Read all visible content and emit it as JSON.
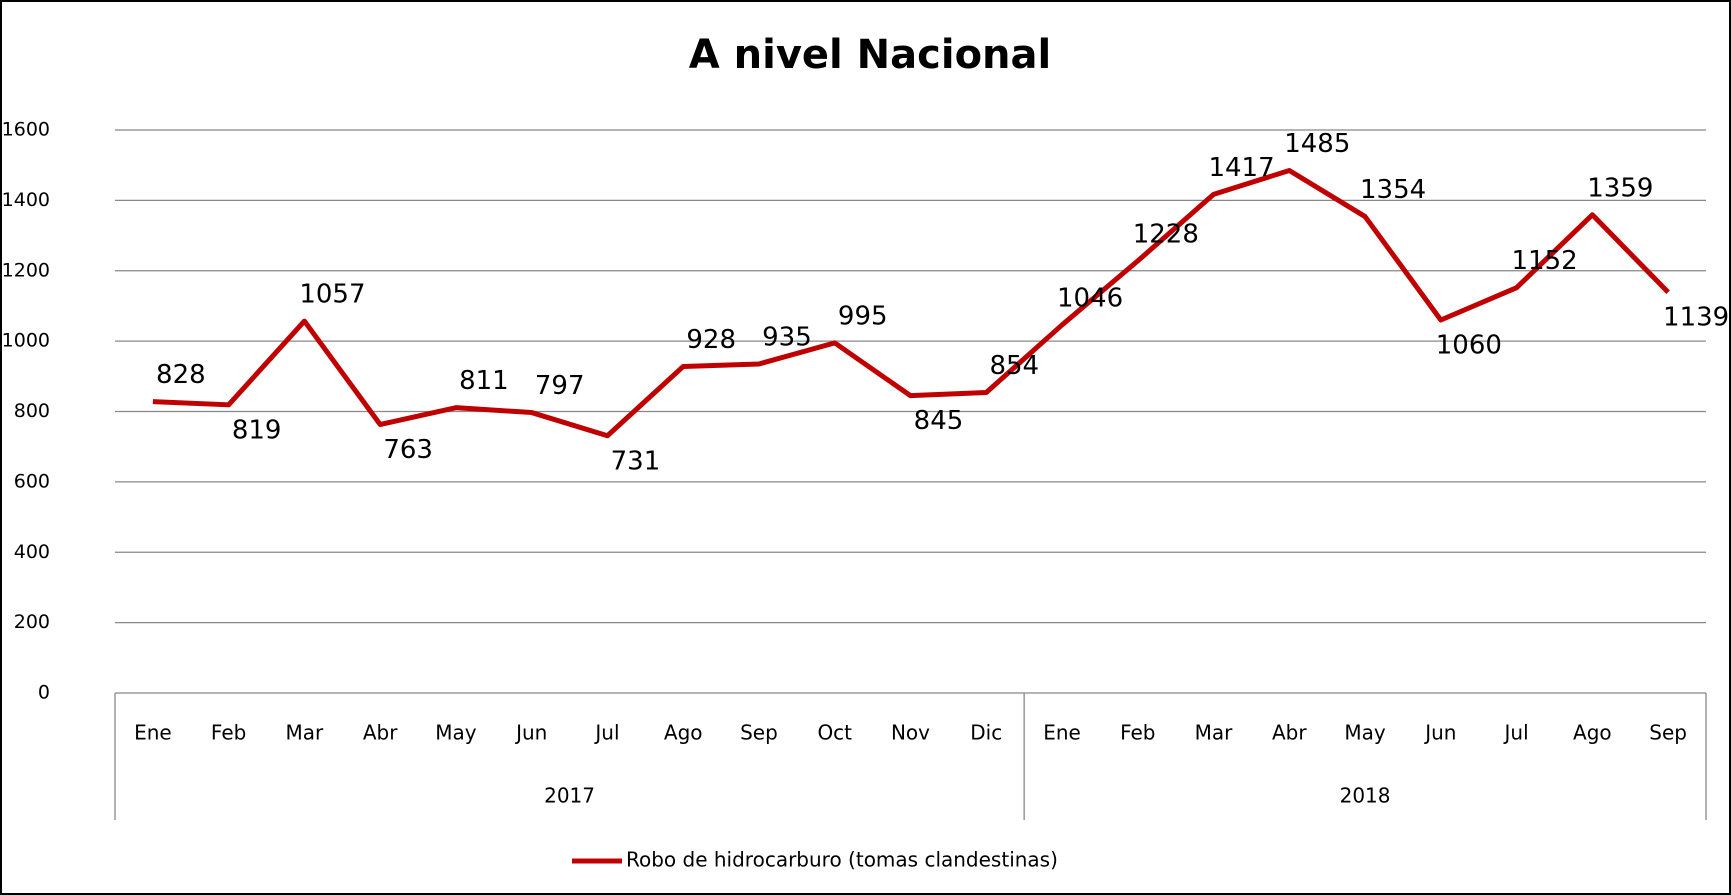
{
  "chart_data": {
    "type": "line",
    "title": "A nivel Nacional",
    "groups": [
      {
        "label": "2017",
        "categories": [
          "Ene",
          "Feb",
          "Mar",
          "Abr",
          "May",
          "Jun",
          "Jul",
          "Ago",
          "Sep",
          "Oct",
          "Nov",
          "Dic"
        ]
      },
      {
        "label": "2018",
        "categories": [
          "Ene",
          "Feb",
          "Mar",
          "Abr",
          "May",
          "Jun",
          "Jul",
          "Ago",
          "Sep"
        ]
      }
    ],
    "series": [
      {
        "name": "Robo de hidrocarburo (tomas clandestinas)",
        "color": "#c00000",
        "values": [
          828,
          819,
          1057,
          763,
          811,
          797,
          731,
          928,
          935,
          995,
          845,
          854,
          1046,
          1228,
          1417,
          1485,
          1354,
          1060,
          1152,
          1359,
          1139
        ]
      }
    ],
    "ylim": [
      0,
      1600
    ],
    "yticks": [
      0,
      200,
      400,
      600,
      800,
      1000,
      1200,
      1400,
      1600
    ],
    "grid": true,
    "legend": "bottom"
  }
}
